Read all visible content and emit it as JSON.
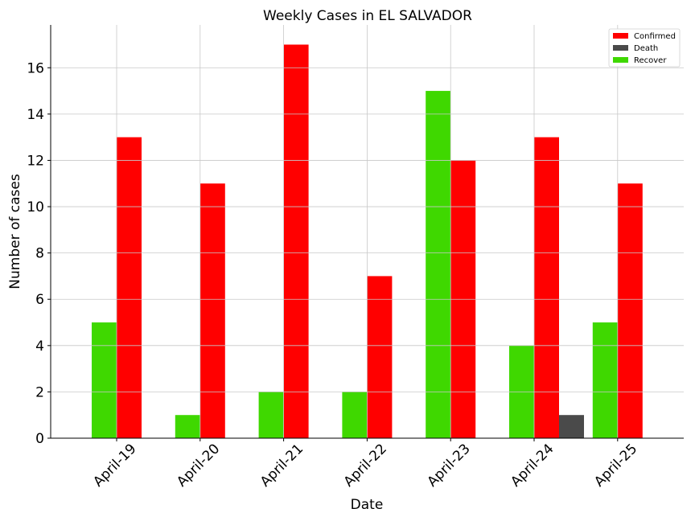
{
  "chart_data": {
    "type": "bar",
    "title": "Weekly Cases in EL SALVADOR",
    "xlabel": "Date",
    "ylabel": "Number of cases",
    "categories": [
      "April-19",
      "April-20",
      "April-21",
      "April-22",
      "April-23",
      "April-24",
      "April-25"
    ],
    "series": [
      {
        "name": "Recover",
        "color": "#3fd800",
        "values": [
          5,
          1,
          2,
          2,
          15,
          4,
          5
        ]
      },
      {
        "name": "Confirmed",
        "color": "#ff0000",
        "values": [
          13,
          11,
          17,
          7,
          12,
          13,
          11
        ]
      },
      {
        "name": "Death",
        "color": "#4a4a4a",
        "values": [
          0,
          0,
          0,
          0,
          0,
          1,
          0
        ]
      }
    ],
    "legend_order": [
      "Confirmed",
      "Death",
      "Recover"
    ],
    "legend_position": "top-right",
    "ylim": [
      0,
      17.85
    ],
    "yticks": [
      0,
      2,
      4,
      6,
      8,
      10,
      12,
      14,
      16
    ],
    "grid": true
  }
}
